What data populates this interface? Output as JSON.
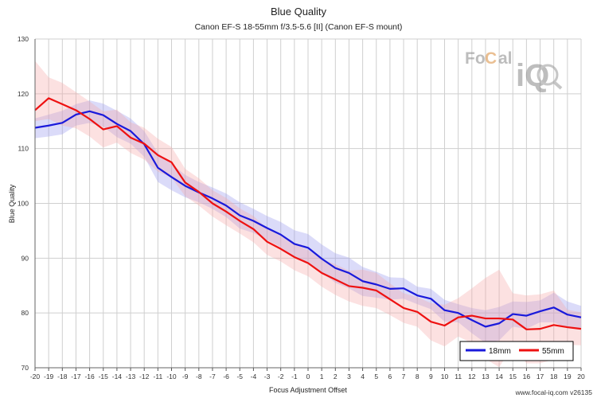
{
  "chart_data": {
    "type": "line",
    "title": "Blue Quality",
    "subtitle": "Canon EF-S 18-55mm f/3.5-5.6 [II] (Canon EF-S mount)",
    "xlabel": "Focus Adjustment Offset",
    "ylabel": "Blue Quality",
    "xlim": [
      -20,
      20
    ],
    "ylim": [
      70,
      130
    ],
    "x_ticks": [
      -20,
      -19,
      -18,
      -17,
      -16,
      -15,
      -14,
      -13,
      -12,
      -11,
      -10,
      -9,
      -8,
      -7,
      -6,
      -5,
      -4,
      -3,
      -2,
      -1,
      0,
      1,
      2,
      3,
      4,
      5,
      6,
      7,
      8,
      9,
      10,
      11,
      12,
      13,
      14,
      15,
      16,
      17,
      18,
      19,
      20
    ],
    "y_ticks": [
      70,
      80,
      90,
      100,
      110,
      120,
      130
    ],
    "grid": true,
    "legend_position": "bottom-right",
    "x": [
      -20,
      -19,
      -18,
      -17,
      -16,
      -15,
      -14,
      -13,
      -12,
      -11,
      -10,
      -9,
      -8,
      -7,
      -6,
      -5,
      -4,
      -3,
      -2,
      -1,
      0,
      1,
      2,
      3,
      4,
      5,
      6,
      7,
      8,
      9,
      10,
      11,
      12,
      13,
      14,
      15,
      16,
      17,
      18,
      19,
      20
    ],
    "series": [
      {
        "name": "18mm",
        "color": "#1a1adb",
        "band_color": "#9999ee",
        "values": [
          113.8,
          114.2,
          114.7,
          116.2,
          116.8,
          116.1,
          114.5,
          113.2,
          110.8,
          106.5,
          104.8,
          103.2,
          102.0,
          100.9,
          99.6,
          97.8,
          96.8,
          95.5,
          94.3,
          92.6,
          91.9,
          89.9,
          88.2,
          87.3,
          85.8,
          85.2,
          84.4,
          84.5,
          83.2,
          82.6,
          80.5,
          80.0,
          78.7,
          77.5,
          78.1,
          79.8,
          79.5,
          80.3,
          81.0,
          79.7,
          79.2
        ],
        "band_upper": [
          115.5,
          116.2,
          116.9,
          118.1,
          118.8,
          118.2,
          116.9,
          115.5,
          113.2,
          109.2,
          107.2,
          105.2,
          103.9,
          102.9,
          101.8,
          100.2,
          99.0,
          97.7,
          96.6,
          95.1,
          94.4,
          92.5,
          90.9,
          90.1,
          88.4,
          87.5,
          86.5,
          86.4,
          84.8,
          84.4,
          82.4,
          81.6,
          80.9,
          80.5,
          81.1,
          82.1,
          82.0,
          82.3,
          83.7,
          82.1,
          81.3
        ],
        "band_lower": [
          111.9,
          112.2,
          112.6,
          114.2,
          114.7,
          114.0,
          112.1,
          110.9,
          108.5,
          103.9,
          102.4,
          101.1,
          100.2,
          99.0,
          97.5,
          95.4,
          94.6,
          93.3,
          92.0,
          90.1,
          89.3,
          87.3,
          85.5,
          84.5,
          83.1,
          82.8,
          82.4,
          82.6,
          81.6,
          80.7,
          78.4,
          78.3,
          76.3,
          74.5,
          75.0,
          77.5,
          77.1,
          78.3,
          78.3,
          77.2,
          77.1
        ]
      },
      {
        "name": "55mm",
        "color": "#ee1111",
        "band_color": "#f6aaaa",
        "values": [
          117.0,
          119.2,
          118.1,
          117.0,
          115.4,
          113.5,
          114.1,
          112.0,
          110.9,
          108.8,
          107.5,
          103.8,
          102.1,
          100.0,
          98.5,
          96.8,
          95.3,
          93.0,
          91.7,
          90.2,
          89.1,
          87.3,
          86.1,
          84.9,
          84.6,
          84.1,
          82.5,
          80.9,
          80.2,
          78.4,
          77.7,
          79.2,
          79.5,
          79.0,
          79.0,
          78.8,
          77.0,
          77.1,
          77.8,
          77.4,
          77.1
        ],
        "band_upper": [
          126.0,
          123.0,
          122.0,
          120.3,
          118.6,
          116.8,
          117.1,
          114.8,
          113.8,
          111.8,
          110.3,
          106.3,
          104.6,
          102.4,
          101.0,
          99.1,
          97.7,
          95.4,
          94.0,
          92.6,
          91.5,
          89.8,
          88.9,
          87.7,
          87.9,
          87.3,
          85.4,
          83.6,
          82.9,
          81.8,
          81.5,
          82.7,
          84.5,
          86.4,
          87.9,
          83.6,
          83.2,
          83.4,
          84.1,
          80.6,
          80.1
        ],
        "band_lower": [
          115.0,
          115.4,
          114.2,
          113.7,
          112.2,
          110.2,
          111.1,
          109.2,
          108.0,
          105.8,
          104.7,
          101.3,
          99.6,
          97.6,
          96.0,
          94.5,
          92.9,
          90.6,
          89.4,
          87.8,
          86.7,
          84.8,
          83.3,
          82.1,
          81.3,
          80.9,
          79.6,
          78.2,
          77.5,
          75.0,
          73.9,
          75.7,
          74.5,
          71.6,
          70.1,
          74.0,
          70.8,
          70.8,
          71.5,
          74.2,
          74.1
        ]
      }
    ]
  },
  "watermark": {
    "logo_text": "FoCal iQ"
  },
  "credit": "www.focal-iq.com  v26135"
}
